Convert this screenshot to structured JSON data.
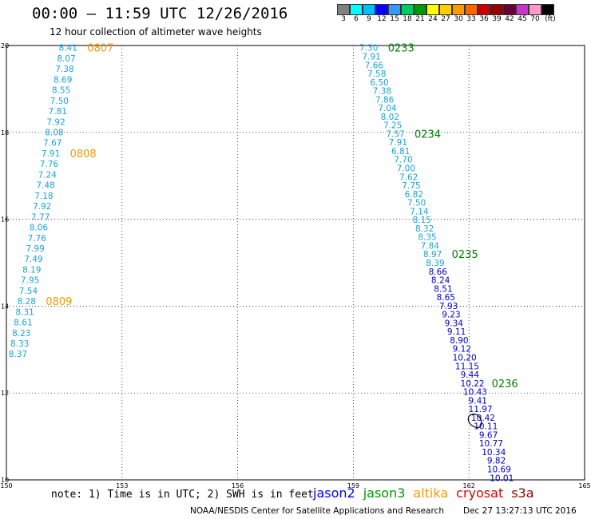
{
  "header": {
    "title": "00:00 – 11:59 UTC 12/26/2016",
    "subtitle": "12 hour collection of altimeter wave heights"
  },
  "colorbar": {
    "colors": [
      "#808080",
      "#00ffff",
      "#00bfff",
      "#0000ff",
      "#3399ff",
      "#00cc66",
      "#009900",
      "#ffff00",
      "#ffcc00",
      "#ff9900",
      "#ff6600",
      "#cc0000",
      "#990000",
      "#660033",
      "#cc33cc",
      "#ff99cc",
      "#000000"
    ],
    "labels": [
      "3",
      "6",
      "9",
      "12",
      "15",
      "18",
      "21",
      "24",
      "27",
      "30",
      "33",
      "36",
      "39",
      "42",
      "45",
      "70",
      "(ft)"
    ]
  },
  "chart_data": {
    "type": "scatter",
    "title": "12 hour collection of altimeter wave heights",
    "xlim": [
      150,
      165
    ],
    "ylim": [
      10,
      20
    ],
    "x_ticks": [
      "150",
      "153",
      "156",
      "159",
      "162",
      "165"
    ],
    "y_ticks": [
      "10",
      "12",
      "14",
      "16",
      "18",
      "20"
    ],
    "grid": "dotted",
    "tracks": [
      {
        "satellite": "altika",
        "color": "#1aa3d9",
        "time_color": "#f29900",
        "x_start": 151.6,
        "y_start": 19.95,
        "x_end": 150.3,
        "y_end": 12.9,
        "values": [
          "8.41",
          "8.07",
          "7.38",
          "8.69",
          "8.55",
          "7.50",
          "7.81",
          "7.92",
          "8.08",
          "7.67",
          "7.91",
          "7.76",
          "7.24",
          "7.48",
          "7.18",
          "7.92",
          "7.77",
          "8.06",
          "7.76",
          "7.99",
          "7.49",
          "8.19",
          "7.95",
          "7.54",
          "8.28",
          "8.31",
          "8.61",
          "8.23",
          "8.33",
          "8.37"
        ],
        "times": [
          {
            "label": "0807",
            "index": 0
          },
          {
            "label": "0808",
            "index": 10
          },
          {
            "label": "0809",
            "index": 24
          }
        ]
      },
      {
        "satellite": "jason3",
        "color": "#1aa3d9",
        "color_change_index": 26,
        "color_after": "#0000cc",
        "time_color": "#008000",
        "x_start": 159.4,
        "y_start": 19.95,
        "x_end": 162.85,
        "y_end": 10.05,
        "values": [
          "7.30",
          "7.91",
          "7.66",
          "7.58",
          "6.50",
          "7.38",
          "7.86",
          "7.04",
          "8.02",
          "7.25",
          "7.57",
          "7.91",
          "6.81",
          "7.70",
          "7.00",
          "7.62",
          "7.75",
          "6.82",
          "7.50",
          "7.14",
          "8.15",
          "8.32",
          "8.35",
          "7.84",
          "8.97",
          "8.39",
          "8.66",
          "8.24",
          "8.51",
          "8.65",
          "7.93",
          "9.23",
          "9.34",
          "9.11",
          "8.90",
          "9.12",
          "10.20",
          "11.15",
          "9.44",
          "10.22",
          "10.43",
          "9.41",
          "11.97",
          "10.42",
          "10.11",
          "9.67",
          "10.77",
          "10.34",
          "9.82",
          "10.69",
          "10.01"
        ],
        "times": [
          {
            "label": "0233",
            "index": 0
          },
          {
            "label": "0234",
            "index": 10
          },
          {
            "label": "0235",
            "index": 24
          },
          {
            "label": "0236",
            "index": 39
          }
        ]
      }
    ],
    "land_outline": {
      "x": 162.15,
      "y": 11.35
    }
  },
  "footer": {
    "note": "note: 1) Time is in UTC; 2) SWH is in feet",
    "satellites": [
      {
        "name": "jason2",
        "color": "#0000ff"
      },
      {
        "name": "jason3",
        "color": "#009900"
      },
      {
        "name": "altika",
        "color": "#ff9900"
      },
      {
        "name": "cryosat",
        "color": "#dd0000"
      },
      {
        "name": "s3a",
        "color": "#990000"
      }
    ],
    "credit": "NOAA/NESDIS Center for Satellite Applications and Research",
    "timestamp": "Dec 27 13:27:13 UTC 2016"
  }
}
